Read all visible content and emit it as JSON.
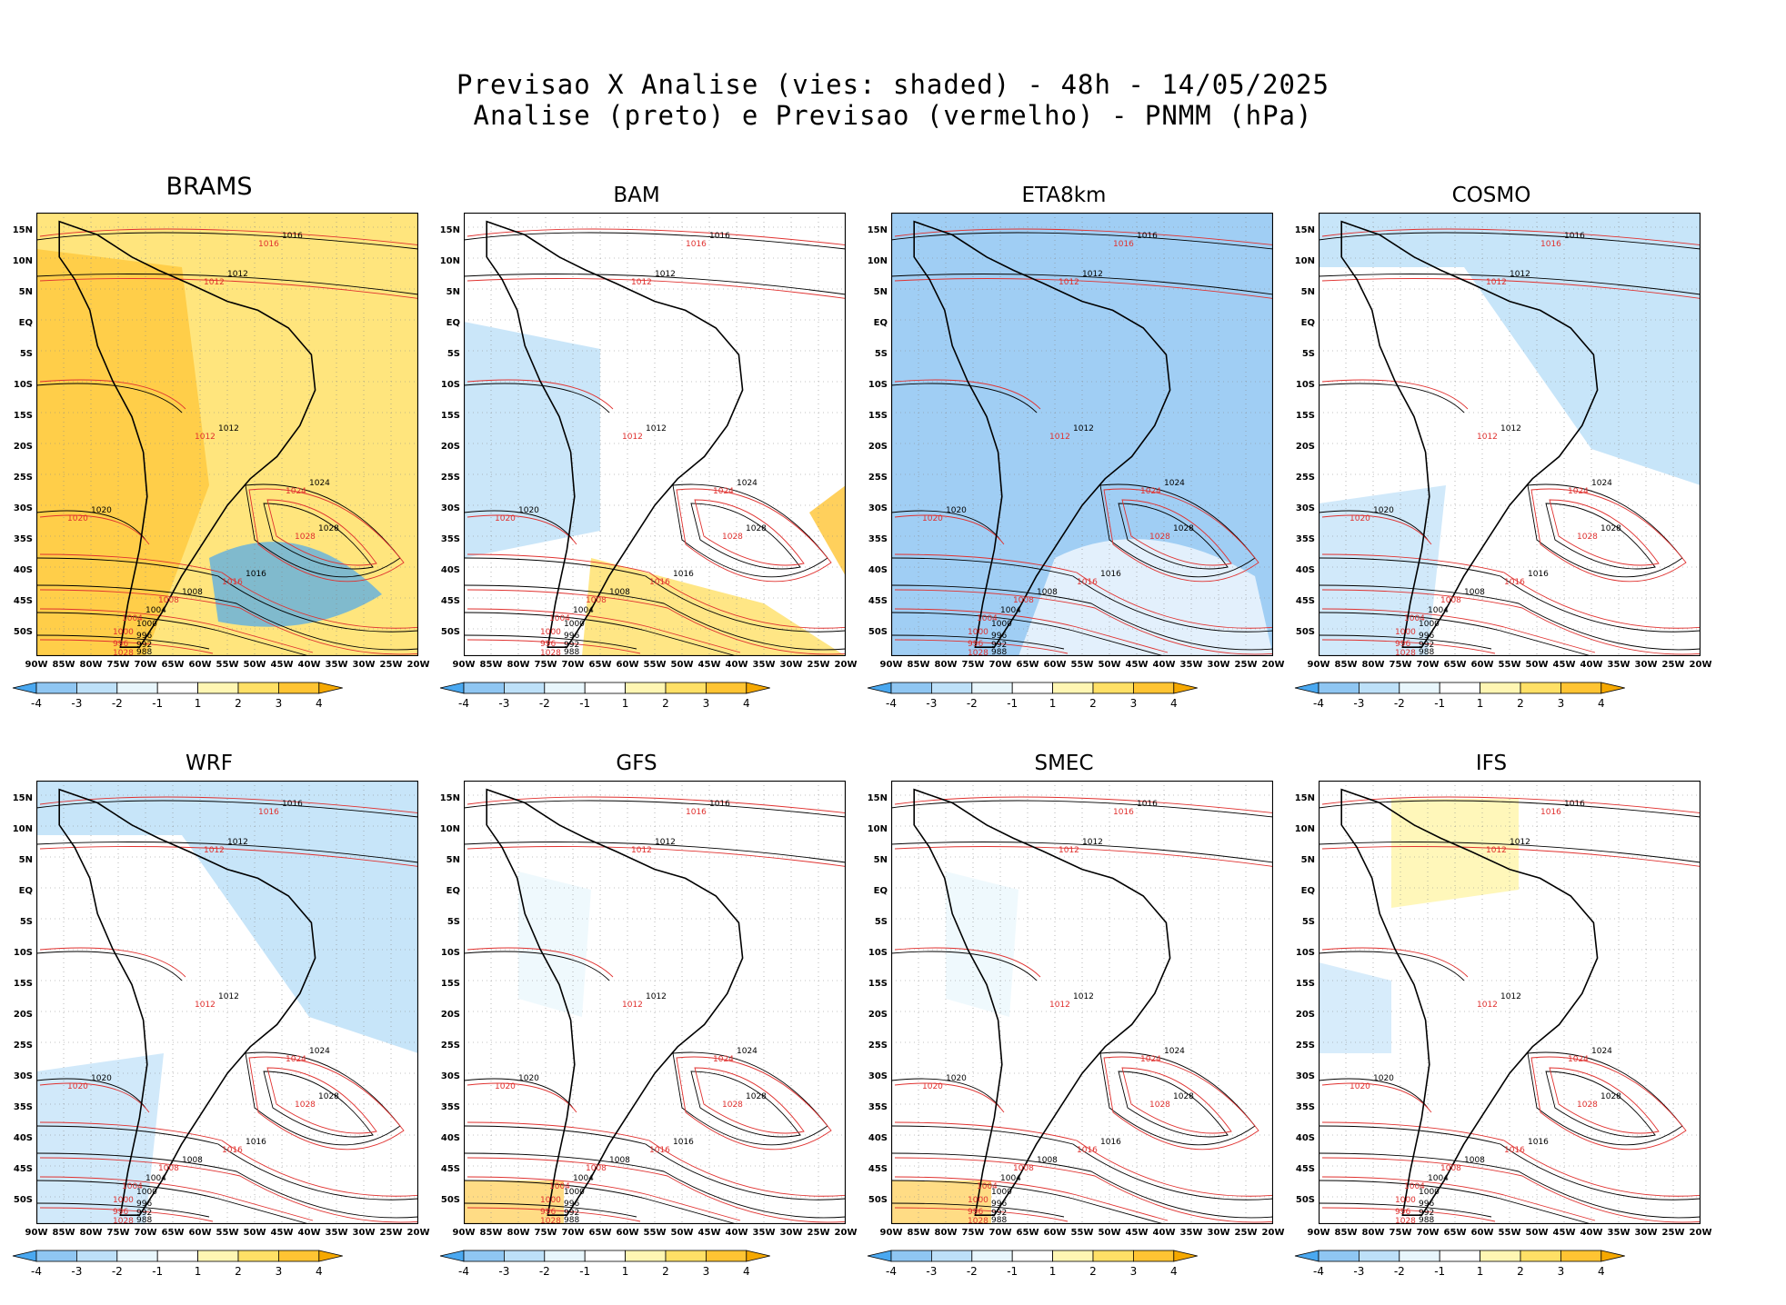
{
  "header": {
    "line1": "Previsao X Analise (vies: shaded) - 48h - 14/05/2025",
    "line2": "Analise (preto) e Previsao (vermelho) - PNMM (hPa)"
  },
  "axes": {
    "lat_labels": [
      "15N",
      "10N",
      "5N",
      "EQ",
      "5S",
      "10S",
      "15S",
      "20S",
      "25S",
      "30S",
      "35S",
      "40S",
      "45S",
      "50S"
    ],
    "lon_labels": [
      "90W",
      "85W",
      "80W",
      "75W",
      "70W",
      "65W",
      "60W",
      "55W",
      "50W",
      "45W",
      "40W",
      "35W",
      "30W",
      "25W",
      "20W"
    ]
  },
  "colorbar": {
    "labels": [
      "-4",
      "-3",
      "-2",
      "-1",
      "1",
      "2",
      "3",
      "4"
    ],
    "colors": [
      "#4aa8f0",
      "#8fc6f2",
      "#bde0f8",
      "#e8f6fc",
      "#ffffff",
      "#fff6b3",
      "#ffe066",
      "#ffc433",
      "#f5a800"
    ]
  },
  "panels": [
    {
      "id": "brams",
      "title": "BRAMS",
      "bias": "warm-strong"
    },
    {
      "id": "bam",
      "title": "BAM",
      "bias": "mixed"
    },
    {
      "id": "eta8km",
      "title": "ETA8km",
      "bias": "cold"
    },
    {
      "id": "cosmo",
      "title": "COSMO",
      "bias": "cold-light"
    },
    {
      "id": "wrf",
      "title": "WRF",
      "bias": "cold-light"
    },
    {
      "id": "gfs",
      "title": "GFS",
      "bias": "neutral"
    },
    {
      "id": "smec",
      "title": "SMEC",
      "bias": "neutral"
    },
    {
      "id": "ifs",
      "title": "IFS",
      "bias": "warm-light"
    }
  ],
  "isobar_labels": {
    "black": [
      "1016",
      "1012",
      "1012",
      "1024",
      "1028",
      "1020",
      "1016",
      "1008",
      "1004",
      "1000",
      "996",
      "992",
      "988"
    ],
    "red": [
      "1016",
      "1012",
      "1012",
      "1024",
      "1028",
      "1020",
      "1016",
      "1008",
      "1004",
      "1000",
      "996",
      "1028",
      "1024"
    ]
  }
}
